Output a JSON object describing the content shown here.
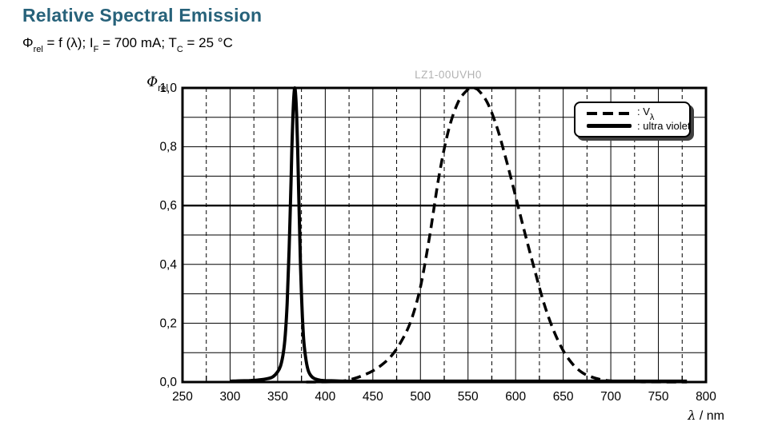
{
  "header": {
    "title": "Relative Spectral Emission",
    "title_color": "#27627a"
  },
  "subtitle": {
    "phi": "Φ",
    "phi_sub": "rel",
    "seg1": " = f (λ); I",
    "sub1": "F",
    "seg2": " = 700 mA; T",
    "sub2": "C",
    "seg3": " = 25 °C"
  },
  "chart": {
    "watermark": "LZ1-00UVH0",
    "y_axis_label": {
      "symbol": "Φ",
      "sub": "rel"
    },
    "x_axis_label": {
      "symbol": "λ",
      "rest": " / nm"
    },
    "legend": {
      "items": [
        {
          "style": "dashed",
          "pre": ": V",
          "sub": "λ"
        },
        {
          "style": "solid",
          "pre": ": ultra violet",
          "sub": ""
        }
      ]
    }
  },
  "chart_data": {
    "type": "line",
    "title": "Relative Spectral Emission",
    "xlabel": "λ / nm",
    "ylabel": "Φrel",
    "xlim": [
      250,
      800
    ],
    "ylim": [
      0,
      1.0
    ],
    "x_ticks": [
      250,
      300,
      350,
      400,
      450,
      500,
      550,
      600,
      650,
      700,
      750,
      800
    ],
    "x_minor_step": 25,
    "y_gridline_step": 0.1,
    "y_ticks": [
      0.0,
      0.2,
      0.4,
      0.6,
      0.8,
      1.0
    ],
    "y_tick_labels": [
      "0,0",
      "0,2",
      "0,4",
      "0,6",
      "0,8",
      "1,0"
    ],
    "emphasized_y_gridline": 0.6,
    "grid": "solid majors; dashed x minors",
    "legend_position": "top-right",
    "series": [
      {
        "name": "Vλ",
        "line": "dashed",
        "points": [
          [
            380,
            0.0
          ],
          [
            390,
            0.0001
          ],
          [
            400,
            0.0004
          ],
          [
            410,
            0.0012
          ],
          [
            420,
            0.004
          ],
          [
            430,
            0.0116
          ],
          [
            440,
            0.023
          ],
          [
            450,
            0.038
          ],
          [
            460,
            0.06
          ],
          [
            470,
            0.091
          ],
          [
            480,
            0.139
          ],
          [
            490,
            0.208
          ],
          [
            500,
            0.323
          ],
          [
            510,
            0.503
          ],
          [
            520,
            0.71
          ],
          [
            530,
            0.862
          ],
          [
            540,
            0.954
          ],
          [
            550,
            0.995
          ],
          [
            555,
            1.0
          ],
          [
            560,
            0.995
          ],
          [
            570,
            0.952
          ],
          [
            580,
            0.87
          ],
          [
            590,
            0.757
          ],
          [
            600,
            0.631
          ],
          [
            610,
            0.503
          ],
          [
            620,
            0.381
          ],
          [
            630,
            0.265
          ],
          [
            640,
            0.175
          ],
          [
            650,
            0.107
          ],
          [
            660,
            0.061
          ],
          [
            670,
            0.032
          ],
          [
            680,
            0.017
          ],
          [
            690,
            0.0082
          ],
          [
            700,
            0.0041
          ],
          [
            710,
            0.0021
          ],
          [
            720,
            0.001
          ],
          [
            730,
            0.0005
          ],
          [
            740,
            0.0003
          ],
          [
            750,
            0.0002
          ],
          [
            760,
            0.0001
          ],
          [
            770,
            0.0001
          ],
          [
            780,
            0.0
          ]
        ]
      },
      {
        "name": "ultra violet",
        "line": "solid",
        "peak_nm": 368,
        "points": [
          [
            300,
            0.003
          ],
          [
            310,
            0.004
          ],
          [
            320,
            0.005
          ],
          [
            330,
            0.007
          ],
          [
            340,
            0.012
          ],
          [
            345,
            0.018
          ],
          [
            350,
            0.035
          ],
          [
            353,
            0.055
          ],
          [
            356,
            0.1
          ],
          [
            358,
            0.16
          ],
          [
            360,
            0.27
          ],
          [
            362,
            0.45
          ],
          [
            364,
            0.68
          ],
          [
            365,
            0.8
          ],
          [
            366,
            0.9
          ],
          [
            367,
            0.97
          ],
          [
            368,
            1.0
          ],
          [
            369,
            0.97
          ],
          [
            370,
            0.9
          ],
          [
            371,
            0.79
          ],
          [
            372,
            0.65
          ],
          [
            373,
            0.52
          ],
          [
            374,
            0.4
          ],
          [
            375,
            0.3
          ],
          [
            376,
            0.22
          ],
          [
            377,
            0.16
          ],
          [
            378,
            0.12
          ],
          [
            380,
            0.07
          ],
          [
            382,
            0.04
          ],
          [
            384,
            0.026
          ],
          [
            386,
            0.018
          ],
          [
            388,
            0.013
          ],
          [
            390,
            0.01
          ],
          [
            395,
            0.006
          ],
          [
            400,
            0.005
          ],
          [
            410,
            0.004
          ],
          [
            420,
            0.003
          ],
          [
            440,
            0.003
          ],
          [
            460,
            0.003
          ],
          [
            500,
            0.003
          ],
          [
            550,
            0.003
          ],
          [
            600,
            0.003
          ],
          [
            650,
            0.003
          ],
          [
            700,
            0.003
          ],
          [
            740,
            0.003
          ],
          [
            780,
            0.003
          ]
        ]
      }
    ]
  }
}
